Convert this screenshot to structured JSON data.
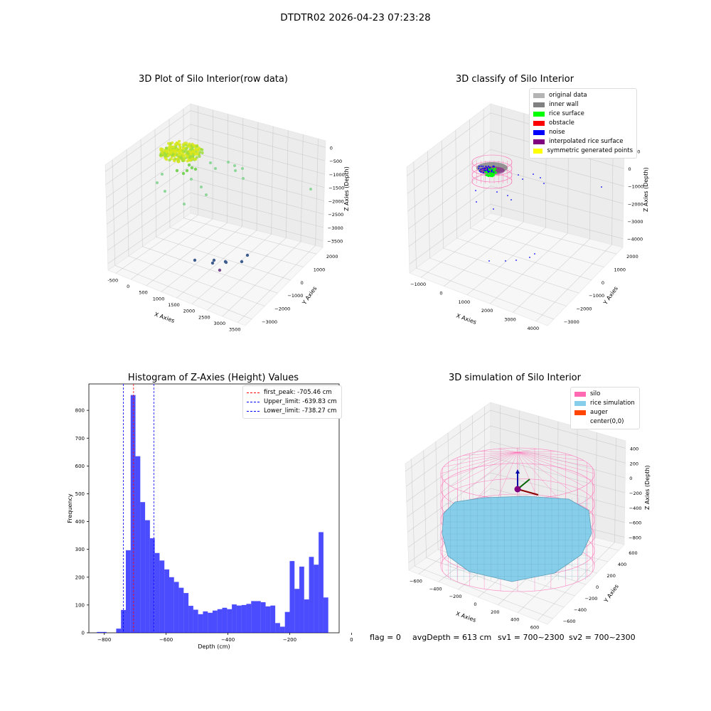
{
  "figure": {
    "suptitle": "DTDTR02 2026-04-23 07:23:28",
    "status": {
      "flag": "flag = 0",
      "avg": "avgDepth = 613 cm",
      "sv1": "sv1 = 700~2300",
      "sv2": "sv2 = 700~2300"
    }
  },
  "panels": {
    "raw": {
      "title": "3D Plot of Silo Interior(row data)",
      "xlabel": "X Axies",
      "ylabel": "Y Axies",
      "zlabel": "Z Axies (Depth)",
      "xticks": [
        "-500",
        "0",
        "500",
        "1000",
        "1500",
        "2000",
        "2500",
        "3000",
        "3500"
      ],
      "yticks": [
        "2000",
        "1000",
        "0",
        "−1000",
        "−2000",
        "−3000"
      ],
      "zticks": [
        "0",
        "−500",
        "−1000",
        "−1500",
        "−2000",
        "−2500",
        "−3000",
        "−3500"
      ]
    },
    "classify": {
      "title": "3D classify of Silo Interior",
      "xlabel": "X Axies",
      "ylabel": "Y Axies",
      "zlabel": "Z Axies (Depth)",
      "xticks": [
        "−1000",
        "0",
        "1000",
        "2000",
        "3000",
        "4000"
      ],
      "yticks": [
        "2000",
        "1000",
        "0",
        "−1000",
        "−2000",
        "−3000"
      ],
      "zticks": [
        "1000",
        "0",
        "−1000",
        "−2000",
        "−3000",
        "−4000"
      ],
      "legend": [
        {
          "label": "original data",
          "color": "#b4b4b4"
        },
        {
          "label": "inner wall",
          "color": "#808080"
        },
        {
          "label": "rice surface",
          "color": "#00ff00"
        },
        {
          "label": "obstacle",
          "color": "#ff0000"
        },
        {
          "label": "noise",
          "color": "#0000ff"
        },
        {
          "label": "interpolated rice surface",
          "color": "#800080"
        },
        {
          "label": "symmetric generated points",
          "color": "#ffff00"
        }
      ]
    },
    "sim": {
      "title": "3D simulation of Silo Interior",
      "xlabel": "X Axies",
      "ylabel": "Y Axies",
      "zlabel": "Z Axies (Depth)",
      "xticks": [
        "−600",
        "−400",
        "−200",
        "0",
        "200",
        "400",
        "600"
      ],
      "yticks": [
        "600",
        "400",
        "200",
        "0",
        "−200",
        "−400",
        "−600"
      ],
      "zticks": [
        "400",
        "200",
        "0",
        "−200",
        "−400",
        "−600",
        "−800"
      ],
      "legend": [
        {
          "label": "silo",
          "color": "#ff69b4"
        },
        {
          "label": "rice simulation",
          "color": "#87ceeb"
        },
        {
          "label": "auger",
          "color": "#ff4500"
        },
        {
          "label": "center(0,0)",
          "color": ""
        }
      ]
    }
  },
  "chart_data": [
    {
      "type": "bar",
      "title": "Histogram of Z-Axies (Height) Values",
      "xlabel": "Depth (cm)",
      "ylabel": "Frequency",
      "xlim": [
        -850,
        -40
      ],
      "ylim": [
        0,
        895
      ],
      "xticks": [
        -800,
        -600,
        -400,
        -200,
        0
      ],
      "xtick_labels": [
        "−800",
        "−600",
        "−400",
        "−200",
        "0"
      ],
      "yticks": [
        0,
        100,
        200,
        300,
        400,
        500,
        600,
        700,
        800
      ],
      "bin_width": 15.6,
      "bin_starts": [
        -824,
        -808.4,
        -792.8,
        -777.2,
        -761.6,
        -746,
        -730.4,
        -714.8,
        -699.2,
        -683.6,
        -668,
        -652.4,
        -636.8,
        -621.2,
        -605.6,
        -590,
        -574.4,
        -558.8,
        -543.2,
        -527.6,
        -512,
        -496.4,
        -480.8,
        -465.2,
        -449.6,
        -434,
        -418.4,
        -402.8,
        -387.2,
        -371.6,
        -356,
        -340.4,
        -324.8,
        -309.2,
        -293.6,
        -278,
        -262.4,
        -246.8,
        -231.2,
        -215.6,
        -200,
        -184.4,
        -168.8,
        -153.2,
        -137.6,
        -122,
        -106.4,
        -90.8,
        -75.2,
        -59.6,
        -44,
        -28.4,
        -12.8
      ],
      "frequencies": [
        3,
        3,
        0,
        0,
        15,
        82,
        297,
        855,
        635,
        470,
        405,
        340,
        287,
        260,
        228,
        200,
        183,
        162,
        143,
        97,
        83,
        67,
        77,
        72,
        80,
        85,
        90,
        85,
        102,
        98,
        100,
        104,
        114,
        114,
        110,
        95,
        98,
        35,
        22,
        75,
        258,
        158,
        238,
        120,
        273,
        245,
        362,
        127,
        0,
        0,
        0,
        0,
        0
      ],
      "color": "#0000ff",
      "lines": [
        {
          "name": "first_peak: -705.46 cm",
          "x": -705.46,
          "color": "#ff0000"
        },
        {
          "name": "Upper_limit: -639.83 cm",
          "x": -639.83,
          "color": "#0000ff"
        },
        {
          "name": "Lower_limit: -738.27 cm",
          "x": -738.27,
          "color": "#0000ff"
        }
      ],
      "legend_position": "upper right"
    }
  ]
}
